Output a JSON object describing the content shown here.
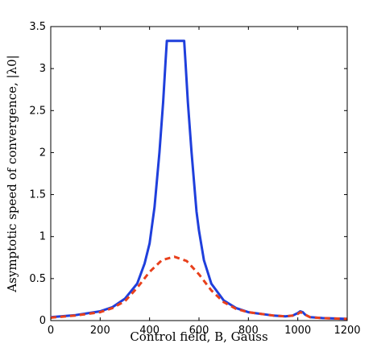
{
  "chart_data": {
    "type": "line",
    "xlabel": "Control field, B, Gauss",
    "ylabel": "Asymptotic speed of convergence, |λ0|",
    "xlim": [
      0,
      1200
    ],
    "ylim": [
      0,
      3.5
    ],
    "x_ticks": [
      0,
      200,
      400,
      600,
      800,
      1000,
      1200
    ],
    "x_tick_labels": [
      "0",
      "200",
      "400",
      "600",
      "800",
      "1000",
      "1200"
    ],
    "y_ticks": [
      0,
      0.5,
      1,
      1.5,
      2,
      2.5,
      3,
      3.5
    ],
    "y_tick_labels": [
      "0",
      "0.5",
      "1",
      "1.5",
      "2",
      "2.5",
      "3",
      "3.5"
    ],
    "grid": false,
    "legend": "none",
    "series": [
      {
        "color": "#1f3fdc",
        "style": "solid",
        "x": [
          0,
          100,
          200,
          250,
          300,
          350,
          380,
          400,
          420,
          440,
          455,
          465,
          470,
          480,
          500,
          520,
          540,
          545,
          555,
          570,
          590,
          600,
          620,
          650,
          700,
          750,
          800,
          900,
          950,
          980,
          1000,
          1010,
          1020,
          1030,
          1050,
          1100,
          1200
        ],
        "y": [
          0.04,
          0.065,
          0.11,
          0.16,
          0.26,
          0.44,
          0.68,
          0.92,
          1.35,
          2.0,
          2.6,
          3.1,
          3.33,
          3.33,
          3.33,
          3.33,
          3.33,
          3.1,
          2.6,
          2.0,
          1.3,
          1.07,
          0.72,
          0.44,
          0.24,
          0.15,
          0.1,
          0.06,
          0.05,
          0.06,
          0.09,
          0.11,
          0.1,
          0.07,
          0.04,
          0.03,
          0.02
        ]
      },
      {
        "color": "#e8401c",
        "style": "dashed",
        "x": [
          0,
          100,
          200,
          250,
          300,
          350,
          400,
          450,
          500,
          550,
          600,
          650,
          700,
          750,
          800,
          900,
          950,
          980,
          1000,
          1010,
          1020,
          1030,
          1050,
          1100,
          1200
        ],
        "y": [
          0.035,
          0.06,
          0.1,
          0.15,
          0.23,
          0.39,
          0.58,
          0.72,
          0.76,
          0.71,
          0.55,
          0.36,
          0.22,
          0.14,
          0.1,
          0.06,
          0.05,
          0.06,
          0.08,
          0.1,
          0.09,
          0.07,
          0.04,
          0.03,
          0.02
        ]
      }
    ]
  }
}
